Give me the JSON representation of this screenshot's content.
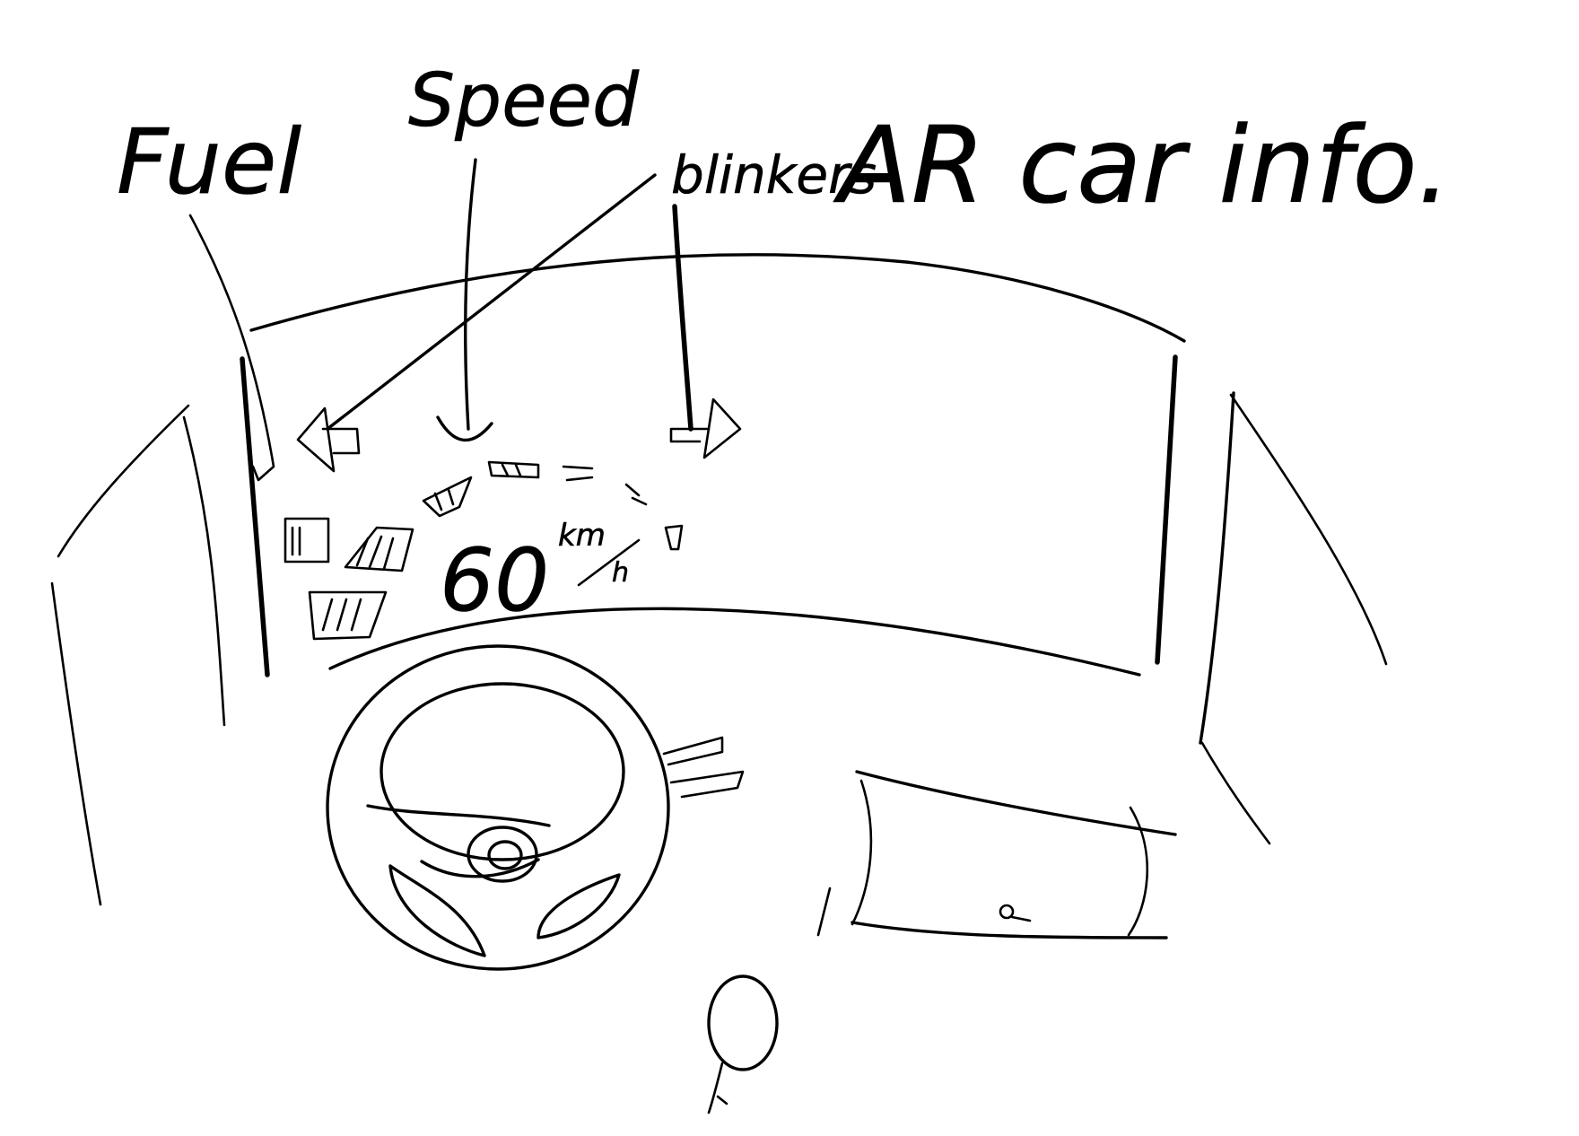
{
  "title": "AR car info.",
  "labels": {
    "fuel": "Fuel",
    "speed": "Speed",
    "blinkers": "blinkers"
  },
  "hud": {
    "speed_value": "60",
    "speed_unit_top": "km",
    "speed_unit_bottom": "h"
  }
}
